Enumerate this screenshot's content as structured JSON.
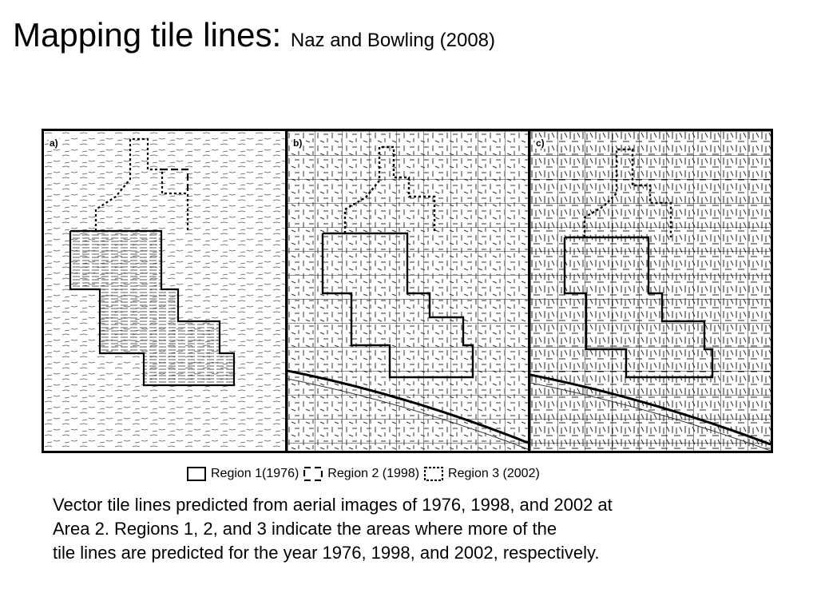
{
  "slide": {
    "title_main": "Mapping tile lines:",
    "title_sub": "Naz and Bowling (2008)"
  },
  "figure": {
    "panels": [
      {
        "label": "a)"
      },
      {
        "label": "b)"
      },
      {
        "label": "c)"
      }
    ],
    "legend": [
      {
        "label": "Region 1(1976)",
        "style": "solid"
      },
      {
        "label": "Region 2 (1998)",
        "style": "dashed"
      },
      {
        "label": "Region 3 (2002)",
        "style": "dotted"
      }
    ]
  },
  "caption": {
    "line1": "Vector tile lines predicted from aerial images of 1976, 1998, and 2002 at",
    "line2": "Area 2. Regions 1, 2, and 3 indicate the areas where more of the",
    "line3": "tile lines are predicted for the year 1976, 1998, and 2002, respectively."
  }
}
